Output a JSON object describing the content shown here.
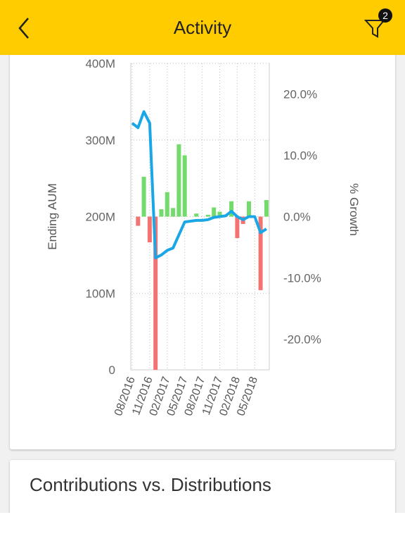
{
  "header": {
    "title": "Activity",
    "filter_badge": "2"
  },
  "chart_data": {
    "type": "combo",
    "categories": [
      "08/2016",
      null,
      null,
      "11/2016",
      null,
      null,
      "02/2017",
      null,
      null,
      "05/2017",
      null,
      null,
      "08/2017",
      null,
      null,
      "11/2017",
      null,
      null,
      "02/2018",
      null,
      null,
      "05/2018",
      null,
      null
    ],
    "series": [
      {
        "type": "line",
        "color": "#1ba7e6",
        "values": [
          322,
          316,
          337,
          322,
          146,
          150,
          156,
          159,
          176,
          193,
          194,
          195,
          195,
          196,
          199,
          200,
          201,
          207,
          200,
          196,
          200,
          200,
          179,
          184
        ]
      },
      {
        "type": "bar",
        "axis": "y2",
        "color": "#72db6c",
        "negative_color": "#f37373",
        "values": [
          null,
          -1.5,
          6.5,
          -4.2,
          -25,
          1.2,
          4,
          1.4,
          11.8,
          10,
          0,
          0.5,
          0,
          0.3,
          1.5,
          0.8,
          0.3,
          2.5,
          -3.5,
          -1.2,
          2.5,
          0,
          -12,
          2.7
        ]
      }
    ],
    "ylabel": "Ending AUM",
    "y2label": "% Growth",
    "ylim": [
      0,
      400
    ],
    "yticks": [
      0,
      {
        "value": 100,
        "label": "100M"
      },
      {
        "value": 200,
        "label": "200M"
      },
      {
        "value": 300,
        "label": "300M"
      },
      {
        "value": 400,
        "label": "400M"
      }
    ],
    "y2lim": [
      -25,
      25
    ],
    "y2ticks": [
      {
        "value": -20,
        "label": "-20.0%"
      },
      {
        "value": -10,
        "label": "-10.0%"
      },
      {
        "value": 0,
        "label": "0.0%"
      },
      {
        "value": 10,
        "label": "10.0%"
      },
      {
        "value": 20,
        "label": "20.0%"
      }
    ],
    "grid": true
  },
  "cards": [
    {
      "title": "Contributions vs. Distributions"
    }
  ]
}
